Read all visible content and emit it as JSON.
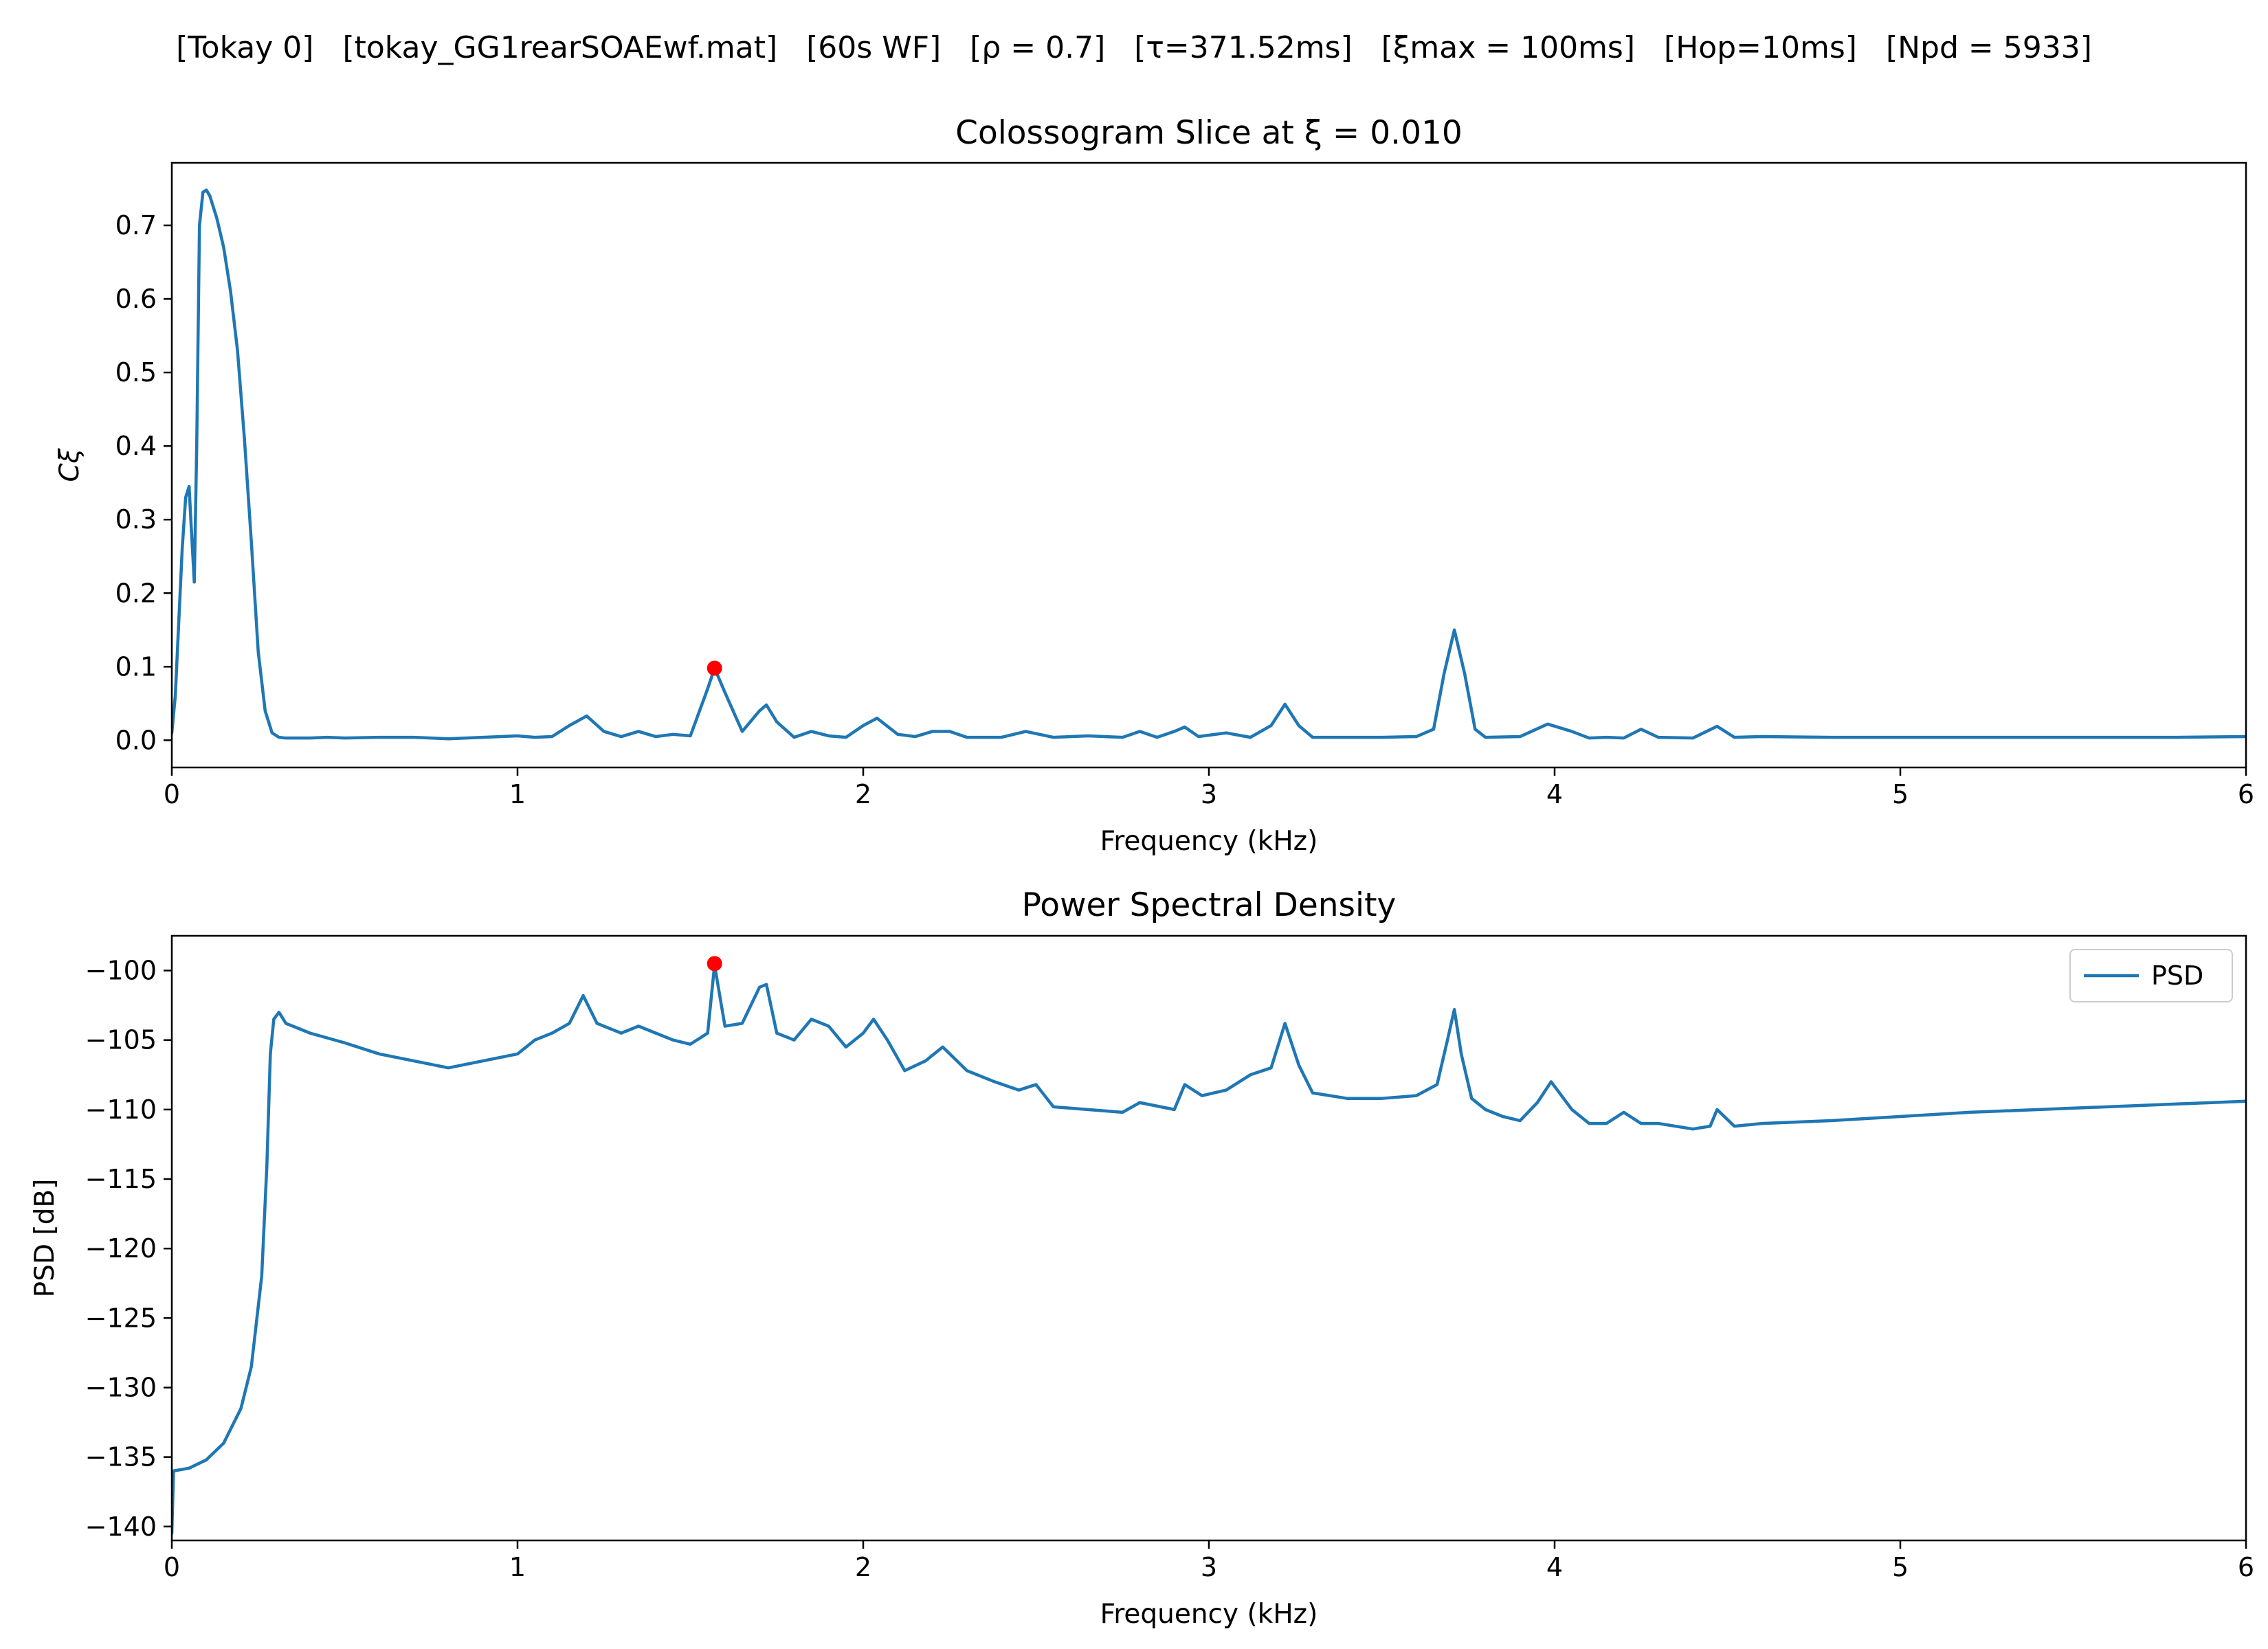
{
  "figure": {
    "suptitle_parts": [
      "[Tokay 0]",
      "[tokay_GG1rearSOAEwf.mat]",
      "[60s WF]",
      "[ρ = 0.7]",
      "[τ=371.52ms]",
      "[ξmax = 100ms]",
      "[Hop=10ms]",
      "[Npd = 5933]"
    ]
  },
  "chart_data": [
    {
      "type": "line",
      "title": "Colossogram Slice at ξ = 0.010",
      "xlabel": "Frequency (kHz)",
      "ylabel": "Cξ",
      "xlim": [
        0,
        6
      ],
      "ylim": [
        -0.037,
        0.785
      ],
      "xticks": [
        0,
        1,
        2,
        3,
        4,
        5,
        6
      ],
      "yticks": [
        0.0,
        0.1,
        0.2,
        0.3,
        0.4,
        0.5,
        0.6,
        0.7
      ],
      "ytick_labels": [
        "0.0",
        "0.1",
        "0.2",
        "0.3",
        "0.4",
        "0.5",
        "0.6",
        "0.7"
      ],
      "grid": false,
      "series": [
        {
          "color": "#1f77b4",
          "x": [
            0,
            0.01,
            0.02,
            0.03,
            0.04,
            0.05,
            0.055,
            0.065,
            0.072,
            0.08,
            0.09,
            0.1,
            0.11,
            0.13,
            0.15,
            0.17,
            0.19,
            0.21,
            0.23,
            0.25,
            0.27,
            0.29,
            0.31,
            0.33,
            0.35,
            0.37,
            0.4,
            0.45,
            0.5,
            0.6,
            0.7,
            0.8,
            0.9,
            1.0,
            1.05,
            1.1,
            1.15,
            1.2,
            1.25,
            1.3,
            1.35,
            1.4,
            1.45,
            1.5,
            1.55,
            1.57,
            1.6,
            1.65,
            1.7,
            1.72,
            1.75,
            1.8,
            1.85,
            1.9,
            1.95,
            2.0,
            2.04,
            2.1,
            2.15,
            2.2,
            2.25,
            2.3,
            2.4,
            2.47,
            2.55,
            2.65,
            2.75,
            2.8,
            2.85,
            2.9,
            2.93,
            2.97,
            3.05,
            3.12,
            3.18,
            3.22,
            3.26,
            3.3,
            3.4,
            3.5,
            3.6,
            3.65,
            3.68,
            3.71,
            3.74,
            3.77,
            3.8,
            3.9,
            3.98,
            4.05,
            4.1,
            4.15,
            4.2,
            4.25,
            4.3,
            4.4,
            4.47,
            4.52,
            4.6,
            4.8,
            5.0,
            5.2,
            5.4,
            5.6,
            5.8,
            6.0
          ],
          "y": [
            0.01,
            0.06,
            0.16,
            0.26,
            0.33,
            0.345,
            0.3,
            0.215,
            0.4,
            0.7,
            0.745,
            0.748,
            0.74,
            0.71,
            0.67,
            0.61,
            0.53,
            0.41,
            0.27,
            0.12,
            0.04,
            0.01,
            0.004,
            0.003,
            0.003,
            0.003,
            0.003,
            0.004,
            0.003,
            0.004,
            0.004,
            0.002,
            0.004,
            0.006,
            0.004,
            0.005,
            0.02,
            0.033,
            0.012,
            0.005,
            0.012,
            0.005,
            0.008,
            0.006,
            0.07,
            0.098,
            0.065,
            0.012,
            0.04,
            0.048,
            0.025,
            0.004,
            0.012,
            0.006,
            0.004,
            0.02,
            0.03,
            0.008,
            0.005,
            0.012,
            0.012,
            0.004,
            0.004,
            0.012,
            0.004,
            0.006,
            0.004,
            0.012,
            0.004,
            0.012,
            0.018,
            0.005,
            0.01,
            0.004,
            0.02,
            0.049,
            0.02,
            0.004,
            0.004,
            0.004,
            0.005,
            0.015,
            0.09,
            0.15,
            0.09,
            0.015,
            0.004,
            0.005,
            0.022,
            0.012,
            0.003,
            0.004,
            0.003,
            0.015,
            0.004,
            0.003,
            0.019,
            0.004,
            0.005,
            0.004,
            0.004,
            0.004,
            0.004,
            0.004,
            0.004,
            0.005
          ]
        }
      ],
      "marker": {
        "x": 1.57,
        "y": 0.098,
        "color": "#ff0000"
      }
    },
    {
      "type": "line",
      "title": "Power Spectral Density",
      "xlabel": "Frequency (kHz)",
      "ylabel": "PSD [dB]",
      "xlim": [
        0,
        6
      ],
      "ylim": [
        -141,
        -97.5
      ],
      "xticks": [
        0,
        1,
        2,
        3,
        4,
        5,
        6
      ],
      "yticks": [
        -100,
        -105,
        -110,
        -115,
        -120,
        -125,
        -130,
        -135,
        -140
      ],
      "ytick_labels": [
        "−100",
        "−105",
        "−110",
        "−115",
        "−120",
        "−125",
        "−130",
        "−135",
        "−140"
      ],
      "grid": false,
      "legend": {
        "position": "top-right",
        "entries": [
          "PSD"
        ]
      },
      "series": [
        {
          "name": "PSD",
          "color": "#1f77b4",
          "x": [
            0,
            0.005,
            0.05,
            0.1,
            0.15,
            0.2,
            0.23,
            0.26,
            0.275,
            0.285,
            0.295,
            0.31,
            0.33,
            0.35,
            0.4,
            0.5,
            0.6,
            0.7,
            0.8,
            0.9,
            1.0,
            1.05,
            1.1,
            1.15,
            1.19,
            1.23,
            1.3,
            1.35,
            1.4,
            1.45,
            1.5,
            1.55,
            1.57,
            1.6,
            1.65,
            1.7,
            1.72,
            1.75,
            1.8,
            1.85,
            1.9,
            1.95,
            2.0,
            2.03,
            2.07,
            2.12,
            2.18,
            2.23,
            2.3,
            2.38,
            2.45,
            2.5,
            2.55,
            2.65,
            2.75,
            2.8,
            2.9,
            2.93,
            2.98,
            3.05,
            3.12,
            3.18,
            3.22,
            3.26,
            3.3,
            3.4,
            3.5,
            3.6,
            3.66,
            3.69,
            3.71,
            3.73,
            3.76,
            3.8,
            3.85,
            3.9,
            3.95,
            3.99,
            4.05,
            4.1,
            4.15,
            4.2,
            4.25,
            4.3,
            4.4,
            4.45,
            4.47,
            4.52,
            4.6,
            4.8,
            5.0,
            5.2,
            5.4,
            5.6,
            5.8,
            6.0
          ],
          "y": [
            -140.5,
            -136,
            -135.8,
            -135.2,
            -134,
            -131.5,
            -128.5,
            -122,
            -114,
            -106,
            -103.5,
            -103,
            -103.8,
            -104,
            -104.5,
            -105.2,
            -106,
            -106.5,
            -107,
            -106.5,
            -106,
            -105,
            -104.5,
            -103.8,
            -101.8,
            -103.8,
            -104.5,
            -104,
            -104.5,
            -105,
            -105.3,
            -104.5,
            -99.6,
            -104,
            -103.8,
            -101.2,
            -101,
            -104.5,
            -105,
            -103.5,
            -104,
            -105.5,
            -104.5,
            -103.5,
            -105,
            -107.2,
            -106.5,
            -105.5,
            -107.2,
            -108,
            -108.6,
            -108.2,
            -109.8,
            -110,
            -110.2,
            -109.5,
            -110,
            -108.2,
            -109,
            -108.6,
            -107.5,
            -107,
            -103.8,
            -106.8,
            -108.8,
            -109.2,
            -109.2,
            -109,
            -108.2,
            -105,
            -102.8,
            -106,
            -109.2,
            -110,
            -110.5,
            -110.8,
            -109.5,
            -108,
            -110,
            -111,
            -111,
            -110.2,
            -111,
            -111,
            -111.4,
            -111.2,
            -110,
            -111.2,
            -111,
            -110.8,
            -110.5,
            -110.2,
            -110,
            -109.8,
            -109.6,
            -109.4
          ]
        }
      ],
      "marker": {
        "x": 1.57,
        "y": -99.5,
        "color": "#ff0000"
      }
    }
  ]
}
